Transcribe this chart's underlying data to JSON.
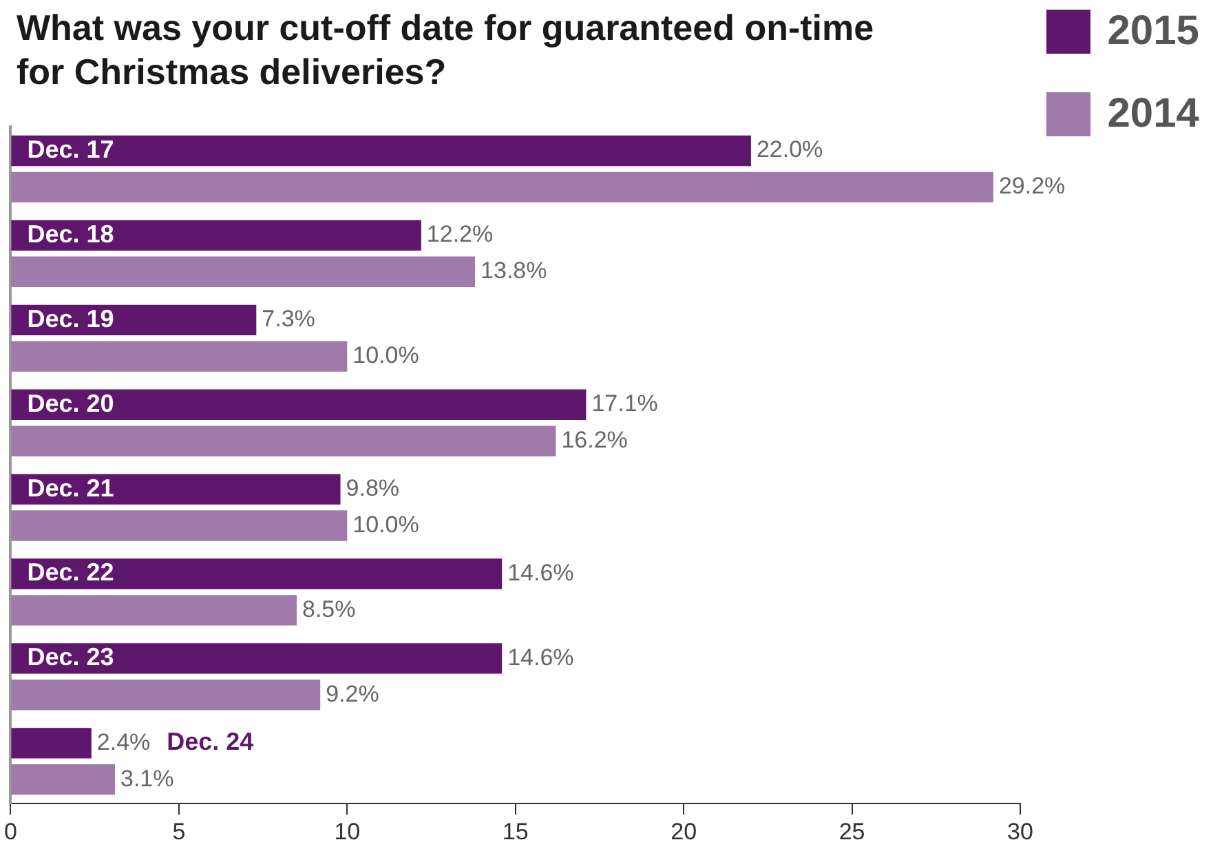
{
  "chart_data": {
    "type": "bar",
    "orientation": "horizontal",
    "title": "What was your cut-off date for guaranteed on-time for Christmas deliveries?",
    "categories": [
      "Dec. 17",
      "Dec. 18",
      "Dec. 19",
      "Dec. 20",
      "Dec. 21",
      "Dec. 22",
      "Dec. 23",
      "Dec. 24"
    ],
    "series": [
      {
        "name": "2015",
        "color": "#5e176d",
        "values": [
          22.0,
          12.2,
          7.3,
          17.1,
          9.8,
          14.6,
          14.6,
          2.4
        ],
        "value_labels": [
          "22.0%",
          "12.2%",
          "7.3%",
          "17.1%",
          "9.8%",
          "14.6%",
          "14.6%",
          "2.4%"
        ]
      },
      {
        "name": "2014",
        "color": "#9f7aaa",
        "values": [
          29.2,
          13.8,
          10.0,
          16.2,
          10.0,
          8.5,
          9.2,
          3.1
        ],
        "value_labels": [
          "29.2%",
          "13.8%",
          "10.0%",
          "16.2%",
          "10.0%",
          "8.5%",
          "9.2%",
          "3.1%"
        ]
      }
    ],
    "xlim": [
      0,
      30
    ],
    "xticks": [
      0,
      5,
      10,
      15,
      20,
      25,
      30
    ],
    "grid": false,
    "legend": "top right"
  }
}
